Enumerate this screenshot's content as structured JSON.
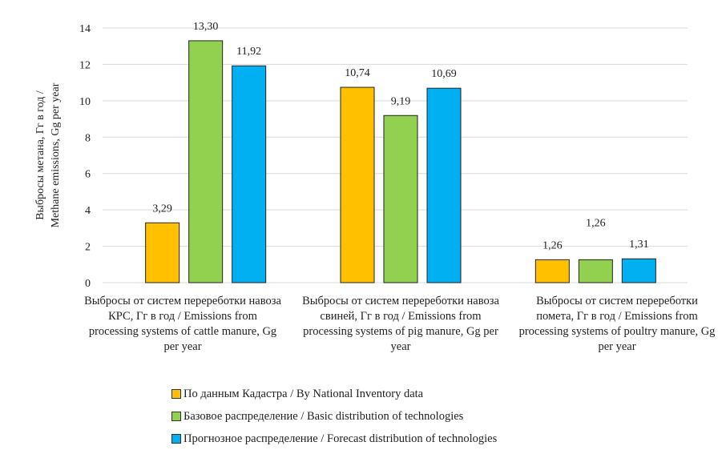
{
  "chart_data": {
    "type": "bar",
    "ylabel": "Выбросы метана, Гг в год / Methane emissions, Gg per year",
    "ylim": [
      0,
      14
    ],
    "yticks": [
      "0",
      "2",
      "4",
      "6",
      "8",
      "10",
      "12",
      "14"
    ],
    "grid": true,
    "legend_position": "bottom",
    "categories": [
      "Выбросы  от систем перереботки навоза КРС, Гг в год / Emissions from processing systems of cattle manure, Gg per year",
      "Выбросы  от систем перереботки навоза свиней, Гг в год / Emissions from processing systems of pig manure, Gg per year",
      "Выбросы  от систем перереботки помета, Гг в год / Emissions from processing systems of poultry manure, Gg per year"
    ],
    "series": [
      {
        "name": "По данным Кадастра / By National Inventory data",
        "color": "#FFC000",
        "values": [
          3.29,
          10.74,
          1.26
        ],
        "labels": [
          "3,29",
          "10,74",
          "1,26"
        ]
      },
      {
        "name": "Базовое распределение / Basic distribution of technologies",
        "color": "#92D050",
        "values": [
          13.3,
          9.19,
          1.26
        ],
        "labels": [
          "13,30",
          "9,19",
          "1,26"
        ]
      },
      {
        "name": "Прогнозное распределение / Forecast distribution of technologies",
        "color": "#00B0F0",
        "values": [
          11.92,
          10.69,
          1.31
        ],
        "labels": [
          "11,92",
          "10,69",
          "1,31"
        ]
      }
    ]
  }
}
